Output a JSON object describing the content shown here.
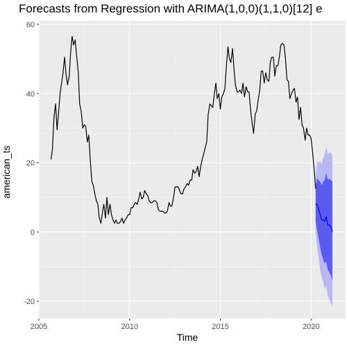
{
  "chart_data": {
    "type": "line",
    "title": "Forecasts from Regression with ARIMA(1,0,0)(1,1,0)[12] e",
    "xlabel": "Time",
    "ylabel": "american_ts",
    "xlim": [
      2005.0,
      2021.9
    ],
    "ylim": [
      -25.0,
      61.0
    ],
    "x_ticks": [
      2005,
      2010,
      2015,
      2020
    ],
    "x_tick_labels": [
      "2005",
      "2010",
      "2015",
      "2020"
    ],
    "y_ticks": [
      -20,
      0,
      20,
      40,
      60
    ],
    "y_tick_labels": [
      "-20",
      "0",
      "20",
      "40",
      "60"
    ],
    "grid": true,
    "colors": {
      "panel_background": "#ebebeb",
      "grid_major": "#ffffff",
      "grid_minor": "#f5f5f5",
      "series": "#000000",
      "forecast_mean": "#0000ff",
      "interval_80": "#5b5bf0",
      "interval_95": "#b8b8f5"
    },
    "series": [
      {
        "values": [
          [
            2005.67,
            21.0
          ],
          [
            2005.75,
            24.0
          ],
          [
            2005.83,
            33.0
          ],
          [
            2005.92,
            37.0
          ],
          [
            2006.0,
            29.5
          ],
          [
            2006.08,
            34.0
          ],
          [
            2006.17,
            40.0
          ],
          [
            2006.25,
            43.0
          ],
          [
            2006.33,
            46.0
          ],
          [
            2006.42,
            50.5
          ],
          [
            2006.5,
            45.5
          ],
          [
            2006.58,
            42.5
          ],
          [
            2006.67,
            45.0
          ],
          [
            2006.75,
            52.0
          ],
          [
            2006.83,
            56.5
          ],
          [
            2006.92,
            54.0
          ],
          [
            2007.0,
            55.5
          ],
          [
            2007.08,
            51.0
          ],
          [
            2007.17,
            46.0
          ],
          [
            2007.25,
            37.0
          ],
          [
            2007.33,
            35.0
          ],
          [
            2007.42,
            30.0
          ],
          [
            2007.5,
            31.0
          ],
          [
            2007.58,
            30.5
          ],
          [
            2007.67,
            26.0
          ],
          [
            2007.75,
            28.0
          ],
          [
            2007.83,
            21.0
          ],
          [
            2007.92,
            14.5
          ],
          [
            2008.0,
            13.5
          ],
          [
            2008.08,
            11.0
          ],
          [
            2008.17,
            9.0
          ],
          [
            2008.25,
            8.0
          ],
          [
            2008.33,
            4.0
          ],
          [
            2008.42,
            2.5
          ],
          [
            2008.5,
            5.5
          ],
          [
            2008.58,
            8.0
          ],
          [
            2008.67,
            4.0
          ],
          [
            2008.75,
            10.0
          ],
          [
            2008.83,
            5.0
          ],
          [
            2008.92,
            8.0
          ],
          [
            2009.0,
            5.0
          ],
          [
            2009.08,
            3.5
          ],
          [
            2009.17,
            2.5
          ],
          [
            2009.25,
            3.5
          ],
          [
            2009.33,
            2.5
          ],
          [
            2009.42,
            2.5
          ],
          [
            2009.5,
            3.0
          ],
          [
            2009.58,
            4.0
          ],
          [
            2009.67,
            2.5
          ],
          [
            2009.75,
            3.5
          ],
          [
            2009.83,
            4.0
          ],
          [
            2009.92,
            5.0
          ],
          [
            2010.0,
            5.0
          ],
          [
            2010.08,
            7.0
          ],
          [
            2010.17,
            7.0
          ],
          [
            2010.25,
            8.0
          ],
          [
            2010.33,
            8.5
          ],
          [
            2010.42,
            8.0
          ],
          [
            2010.5,
            9.5
          ],
          [
            2010.58,
            11.5
          ],
          [
            2010.67,
            9.5
          ],
          [
            2010.75,
            10.0
          ],
          [
            2010.83,
            12.0
          ],
          [
            2010.92,
            11.0
          ],
          [
            2011.0,
            10.5
          ],
          [
            2011.08,
            9.0
          ],
          [
            2011.17,
            8.5
          ],
          [
            2011.25,
            8.5
          ],
          [
            2011.33,
            9.0
          ],
          [
            2011.42,
            9.0
          ],
          [
            2011.5,
            8.5
          ],
          [
            2011.58,
            6.5
          ],
          [
            2011.67,
            6.0
          ],
          [
            2011.75,
            6.0
          ],
          [
            2011.83,
            6.0
          ],
          [
            2011.92,
            5.5
          ],
          [
            2012.0,
            5.5
          ],
          [
            2012.08,
            6.0
          ],
          [
            2012.17,
            8.5
          ],
          [
            2012.25,
            7.5
          ],
          [
            2012.33,
            7.5
          ],
          [
            2012.42,
            10.0
          ],
          [
            2012.5,
            13.0
          ],
          [
            2012.58,
            13.0
          ],
          [
            2012.67,
            13.0
          ],
          [
            2012.75,
            12.0
          ],
          [
            2012.83,
            11.0
          ],
          [
            2012.92,
            11.0
          ],
          [
            2013.0,
            12.5
          ],
          [
            2013.08,
            13.0
          ],
          [
            2013.17,
            14.0
          ],
          [
            2013.25,
            13.5
          ],
          [
            2013.33,
            15.0
          ],
          [
            2013.42,
            15.0
          ],
          [
            2013.5,
            18.0
          ],
          [
            2013.58,
            17.0
          ],
          [
            2013.67,
            17.5
          ],
          [
            2013.75,
            19.0
          ],
          [
            2013.83,
            16.0
          ],
          [
            2013.92,
            19.0
          ],
          [
            2014.0,
            21.0
          ],
          [
            2014.08,
            22.5
          ],
          [
            2014.17,
            24.5
          ],
          [
            2014.25,
            26.0
          ],
          [
            2014.33,
            34.0
          ],
          [
            2014.42,
            37.0
          ],
          [
            2014.5,
            36.5
          ],
          [
            2014.58,
            36.0
          ],
          [
            2014.67,
            40.0
          ],
          [
            2014.75,
            43.0
          ],
          [
            2014.83,
            38.5
          ],
          [
            2014.92,
            40.0
          ],
          [
            2015.0,
            35.5
          ],
          [
            2015.08,
            39.0
          ],
          [
            2015.17,
            40.0
          ],
          [
            2015.25,
            41.5
          ],
          [
            2015.33,
            48.0
          ],
          [
            2015.42,
            53.5
          ],
          [
            2015.5,
            50.0
          ],
          [
            2015.58,
            49.0
          ],
          [
            2015.67,
            53.0
          ],
          [
            2015.75,
            47.0
          ],
          [
            2015.83,
            42.5
          ],
          [
            2015.92,
            40.5
          ],
          [
            2016.0,
            40.5
          ],
          [
            2016.08,
            41.0
          ],
          [
            2016.17,
            40.0
          ],
          [
            2016.25,
            43.0
          ],
          [
            2016.33,
            39.0
          ],
          [
            2016.42,
            42.0
          ],
          [
            2016.5,
            40.5
          ],
          [
            2016.58,
            40.5
          ],
          [
            2016.67,
            35.0
          ],
          [
            2016.75,
            31.5
          ],
          [
            2016.83,
            28.5
          ],
          [
            2016.92,
            34.0
          ],
          [
            2017.0,
            35.0
          ],
          [
            2017.08,
            38.0
          ],
          [
            2017.17,
            41.0
          ],
          [
            2017.25,
            46.5
          ],
          [
            2017.33,
            46.5
          ],
          [
            2017.42,
            43.0
          ],
          [
            2017.5,
            46.0
          ],
          [
            2017.58,
            44.0
          ],
          [
            2017.67,
            43.5
          ],
          [
            2017.75,
            49.0
          ],
          [
            2017.83,
            50.5
          ],
          [
            2017.92,
            50.5
          ],
          [
            2018.0,
            45.0
          ],
          [
            2018.08,
            48.0
          ],
          [
            2018.17,
            48.0
          ],
          [
            2018.25,
            50.5
          ],
          [
            2018.33,
            54.0
          ],
          [
            2018.42,
            54.5
          ],
          [
            2018.5,
            54.0
          ],
          [
            2018.58,
            50.5
          ],
          [
            2018.67,
            44.0
          ],
          [
            2018.75,
            43.5
          ],
          [
            2018.83,
            38.5
          ],
          [
            2018.92,
            40.0
          ],
          [
            2019.0,
            41.0
          ],
          [
            2019.08,
            41.5
          ],
          [
            2019.17,
            37.5
          ],
          [
            2019.25,
            39.0
          ],
          [
            2019.33,
            32.5
          ],
          [
            2019.42,
            36.0
          ],
          [
            2019.5,
            31.0
          ],
          [
            2019.58,
            30.0
          ],
          [
            2019.67,
            26.5
          ],
          [
            2019.75,
            30.0
          ],
          [
            2019.83,
            28.0
          ],
          [
            2019.92,
            28.0
          ],
          [
            2020.0,
            27.0
          ],
          [
            2020.08,
            23.0
          ],
          [
            2020.17,
            18.0
          ],
          [
            2020.25,
            12.5
          ]
        ]
      }
    ],
    "forecast": {
      "x": [
        2020.25,
        2020.33,
        2020.42,
        2020.5,
        2020.58,
        2020.67,
        2020.75,
        2020.83,
        2020.92,
        2021.0,
        2021.08,
        2021.17
      ],
      "mean": [
        8.0,
        8.0,
        6.5,
        5.0,
        3.5,
        3.5,
        3.0,
        4.5,
        2.0,
        2.0,
        1.5,
        0.0
      ],
      "lo80": [
        3.0,
        0.5,
        -2.0,
        -4.5,
        -6.5,
        -8.0,
        -9.0,
        -8.5,
        -11.0,
        -11.5,
        -12.5,
        -14.0
      ],
      "hi80": [
        13.0,
        15.5,
        15.0,
        14.5,
        13.5,
        14.5,
        15.0,
        17.0,
        15.0,
        15.5,
        15.0,
        14.5
      ],
      "lo95": [
        0.0,
        -4.5,
        -7.5,
        -11.0,
        -13.0,
        -14.5,
        -16.5,
        -15.5,
        -18.5,
        -19.5,
        -20.5,
        -21.5
      ],
      "hi95": [
        16.0,
        20.5,
        20.0,
        20.5,
        19.5,
        21.5,
        22.5,
        24.5,
        22.5,
        23.0,
        23.0,
        22.0
      ]
    }
  }
}
